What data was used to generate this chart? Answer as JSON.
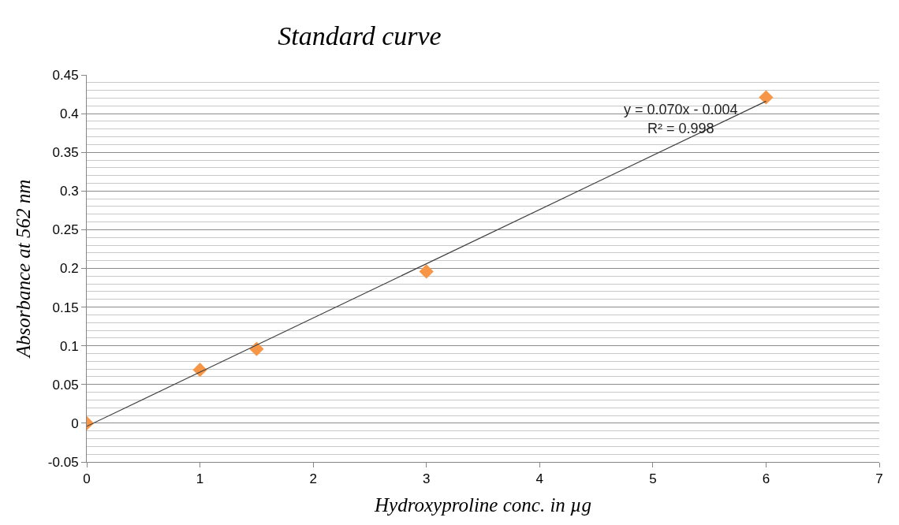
{
  "chart_data": {
    "type": "scatter",
    "title": "Standard curve",
    "xlabel": "Hydroxyproline conc. in µg",
    "ylabel": "Absorbance at 562 nm",
    "x": [
      0,
      1,
      1.5,
      3,
      6
    ],
    "series": [
      {
        "color": "#f79646",
        "values": [
          0,
          0.069,
          0.096,
          0.196,
          0.421
        ],
        "marker": "diamond"
      },
      {
        "type": "line",
        "color": "#404040",
        "x": [
          0,
          6
        ],
        "values": [
          -0.004,
          0.416
        ],
        "marker": "none",
        "line_style": "solid"
      }
    ],
    "annotations": [
      "y = 0.070x - 0.004",
      "R² = 0.998"
    ],
    "xlim": [
      0,
      7
    ],
    "xticks": [
      0,
      1,
      2,
      3,
      4,
      5,
      6,
      7
    ],
    "ylim": [
      -0.05,
      0.45
    ],
    "yticks": [
      -0.05,
      0,
      0.05,
      0.1,
      0.15,
      0.2,
      0.25,
      0.3,
      0.35,
      0.4,
      0.45
    ],
    "grid": "y"
  }
}
